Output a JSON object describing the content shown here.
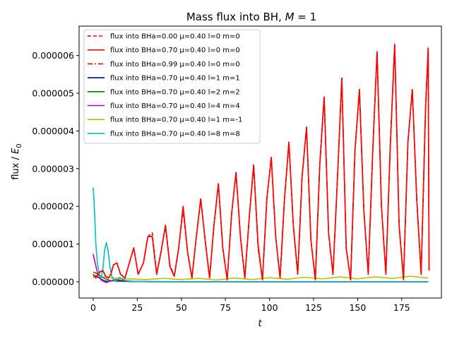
{
  "chart_data": {
    "type": "line",
    "title": "Mass flux into BH, M = 1",
    "title_parts": {
      "prefix": "Mass flux into BH, ",
      "var": "M",
      "suffix": " = 1"
    },
    "xlabel": "t",
    "ylabel_parts": {
      "prefix": "flux / ",
      "var": "E",
      "sub": "0"
    },
    "xlim": [
      -8,
      197.5
    ],
    "ylim": [
      -4.3e-07,
      6.78e-06
    ],
    "x_ticks": [
      0,
      25,
      50,
      75,
      100,
      125,
      150,
      175
    ],
    "y_ticks": [
      0,
      1e-06,
      2e-06,
      3e-06,
      4e-06,
      5e-06,
      6e-06
    ],
    "x_tick_labels": [
      "0",
      "25",
      "50",
      "75",
      "100",
      "125",
      "150",
      "175"
    ],
    "y_tick_labels": [
      "0.000000",
      "0.000001",
      "0.000002",
      "0.000003",
      "0.000004",
      "0.000005",
      "0.000006"
    ],
    "grid": false,
    "legend_position": "top-left",
    "legend_labels": [
      "flux into BHa=0.00 μ=0.40 l=0 m=0",
      "flux into BHa=0.70 μ=0.40 l=0 m=0",
      "flux into BHa=0.99 μ=0.40 l=0 m=0",
      "flux into BHa=0.70 μ=0.40 l=1 m=1",
      "flux into BHa=0.70 μ=0.40 l=2 m=2",
      "flux into BHa=0.70 μ=0.40 l=4 m=4",
      "flux into BHa=0.70 μ=0.40 l=1 m=-1",
      "flux into BHa=0.70 μ=0.40 l=8 m=8"
    ],
    "series": [
      {
        "name": "flux into BHa=0.00 μ=0.40 l=0 m=0",
        "color": "#ff0000",
        "dash": "dashed",
        "x": [
          0,
          1.5,
          3.5,
          5.5,
          7,
          8.5,
          10,
          11.5,
          13.5,
          15.5,
          18,
          20.5,
          23,
          25.5,
          28.5,
          31,
          33.5,
          36,
          38.5,
          41,
          43.5,
          46,
          48.5,
          51,
          53.5,
          56,
          58.5,
          61,
          63.5,
          66,
          68.5,
          71,
          73.5,
          76,
          78.5,
          81,
          83.5,
          86,
          88.5,
          91,
          93.5,
          96,
          98.5,
          101,
          103.5,
          106,
          108.5,
          111,
          113.5,
          116,
          118.5,
          121,
          123.5,
          126,
          128.5,
          131,
          133.5,
          136,
          138.5,
          141,
          143.5,
          146,
          148.5,
          151,
          153.5,
          156,
          158.5,
          161,
          163.5,
          166,
          168.5,
          171,
          173.5,
          176,
          178.5,
          181,
          183.5,
          186,
          188.5,
          190,
          190.5
        ],
        "y": [
          2e-07,
          1e-07,
          2.6e-07,
          3e-07,
          1.5e-07,
          1e-07,
          2e-07,
          4.5e-07,
          5e-07,
          2e-07,
          1e-07,
          5e-07,
          9e-07,
          2e-07,
          5e-07,
          1.2e-06,
          1.3e-06,
          2e-07,
          8e-07,
          1.5e-06,
          4.5e-07,
          1.5e-07,
          9e-07,
          1.9e-06,
          8e-07,
          1e-07,
          1.2e-06,
          2.2e-06,
          1.1e-06,
          1e-07,
          1.5e-06,
          2.6e-06,
          9e-07,
          5e-08,
          1.8e-06,
          2.9e-06,
          1.2e-06,
          1e-07,
          1.7e-06,
          3.1e-06,
          1e-06,
          5e-08,
          2.2e-06,
          3.3e-06,
          1.2e-06,
          1e-07,
          2.2e-06,
          3.7e-06,
          1.5e-06,
          2e-07,
          2.8e-06,
          4.1e-06,
          1.1e-06,
          5e-08,
          3.1e-06,
          4.9e-06,
          1.3e-06,
          2e-07,
          2.7e-06,
          5.4e-06,
          9e-07,
          5e-08,
          3.5e-06,
          5.1e-06,
          1.9e-06,
          2e-07,
          3.4e-06,
          6.1e-06,
          2e-06,
          2e-07,
          3.6e-06,
          6.3e-06,
          1.5e-06,
          5e-08,
          3.7e-06,
          5.1e-06,
          2.2e-06,
          2e-07,
          4.6e-06,
          6.1e-06,
          3e-07
        ]
      },
      {
        "name": "flux into BHa=0.70 μ=0.40 l=0 m=0",
        "color": "#ff0000",
        "dash": "solid",
        "x": [
          0,
          1.5,
          3.5,
          5.5,
          7,
          8.5,
          10,
          11.5,
          13.5,
          15.5,
          18,
          20.5,
          23,
          25.5,
          28.5,
          31,
          33.5,
          36,
          38.5,
          41,
          43.5,
          46,
          48.5,
          51,
          53.5,
          56,
          58.5,
          61,
          63.5,
          66,
          68.5,
          71,
          73.5,
          76,
          78.5,
          81,
          83.5,
          86,
          88.5,
          91,
          93.5,
          96,
          98.5,
          101,
          103.5,
          106,
          108.5,
          111,
          113.5,
          116,
          118.5,
          121,
          123.5,
          126,
          128.5,
          131,
          133.5,
          136,
          138.5,
          141,
          143.5,
          146,
          148.5,
          151,
          153.5,
          156,
          158.5,
          161,
          163.5,
          166,
          168.5,
          171,
          173.5,
          176,
          178.5,
          181,
          183.5,
          186,
          188.5,
          190,
          190.5
        ],
        "y": [
          2e-07,
          1e-07,
          2.5e-07,
          3e-07,
          1.5e-07,
          1e-07,
          2e-07,
          4.5e-07,
          5e-07,
          2e-07,
          1e-07,
          5e-07,
          9e-07,
          2e-07,
          5e-07,
          1.2e-06,
          1.2e-06,
          2e-07,
          8e-07,
          1.5e-06,
          4e-07,
          1.5e-07,
          9e-07,
          2e-06,
          8e-07,
          1e-07,
          1.2e-06,
          2.2e-06,
          1.1e-06,
          1e-07,
          1.5e-06,
          2.6e-06,
          9e-07,
          5e-08,
          1.8e-06,
          2.9e-06,
          1.2e-06,
          1e-07,
          1.7e-06,
          3.1e-06,
          1e-06,
          5e-08,
          2.2e-06,
          3.3e-06,
          1.2e-06,
          1e-07,
          2.2e-06,
          3.7e-06,
          1.5e-06,
          2e-07,
          2.8e-06,
          4.1e-06,
          1.1e-06,
          5e-08,
          3.1e-06,
          4.9e-06,
          1.3e-06,
          2e-07,
          2.7e-06,
          5.4e-06,
          9e-07,
          5e-08,
          3.5e-06,
          5.1e-06,
          1.9e-06,
          2e-07,
          3.4e-06,
          6.1e-06,
          2e-06,
          2e-07,
          3.6e-06,
          6.3e-06,
          1.5e-06,
          5e-08,
          3.7e-06,
          5.1e-06,
          2.2e-06,
          2e-07,
          4.6e-06,
          6.2e-06,
          3e-07
        ]
      },
      {
        "name": "flux into BHa=0.99 μ=0.40 l=0 m=0",
        "color": "#ff0000",
        "dash": "dashdot",
        "x": [
          0,
          1.5,
          3.5,
          5.5,
          7,
          8.5,
          10,
          11.5,
          13.5,
          15.5,
          18,
          20.5,
          23,
          25.5,
          28.5,
          31,
          33.5,
          36,
          38.5,
          41,
          43.5,
          46,
          48.5,
          51,
          53.5,
          56,
          58.5,
          61,
          63.5,
          66,
          68.5,
          71,
          73.5,
          76,
          78.5,
          81,
          83.5,
          86,
          88.5,
          91,
          93.5,
          96,
          98.5,
          101,
          103.5,
          106,
          108.5,
          111,
          113.5,
          116,
          118.5,
          121,
          123.5,
          126,
          128.5,
          131,
          133.5,
          136,
          138.5,
          141,
          143.5,
          146,
          148.5,
          151,
          153.5,
          156,
          158.5,
          161,
          163.5,
          166,
          168.5,
          171,
          173.5,
          176,
          178.5,
          181,
          183.5,
          186,
          188.5,
          190,
          190.5
        ],
        "y": [
          2e-07,
          1e-07,
          2.5e-07,
          3e-07,
          1.5e-07,
          1e-07,
          2e-07,
          4.5e-07,
          5e-07,
          2e-07,
          1e-07,
          5e-07,
          9e-07,
          2e-07,
          5e-07,
          1.2e-06,
          1.2e-06,
          2e-07,
          8e-07,
          1.5e-06,
          4e-07,
          1.5e-07,
          9e-07,
          2e-06,
          8e-07,
          1e-07,
          1.2e-06,
          2.2e-06,
          1.1e-06,
          1e-07,
          1.5e-06,
          2.6e-06,
          9e-07,
          5e-08,
          1.8e-06,
          2.9e-06,
          1.2e-06,
          1e-07,
          1.7e-06,
          3.1e-06,
          9e-07,
          5e-08,
          2.2e-06,
          3.3e-06,
          1.2e-06,
          1e-07,
          2.2e-06,
          3.7e-06,
          1.5e-06,
          2e-07,
          2.8e-06,
          4.1e-06,
          1.1e-06,
          5e-08,
          3.1e-06,
          4.9e-06,
          1.3e-06,
          2e-07,
          2.7e-06,
          5.4e-06,
          9e-07,
          5e-08,
          3.5e-06,
          5.1e-06,
          1.9e-06,
          2e-07,
          3.4e-06,
          6.1e-06,
          2e-06,
          2e-07,
          3.6e-06,
          6.3e-06,
          1.5e-06,
          5e-08,
          3.7e-06,
          5.1e-06,
          2.2e-06,
          2e-07,
          4.6e-06,
          6.2e-06,
          3e-07
        ]
      },
      {
        "name": "flux into BHa=0.70 μ=0.40 l=1 m=1",
        "color": "#0000cc",
        "dash": "solid",
        "x": [
          0,
          1.5,
          3,
          4.5,
          6,
          8,
          10,
          12,
          15,
          20,
          30,
          50,
          80,
          120,
          160,
          180,
          190
        ],
        "y": [
          1.2e-07,
          1.6e-07,
          1.2e-07,
          7e-08,
          3e-08,
          1e-08,
          2e-08,
          5e-08,
          3e-08,
          1e-08,
          5e-09,
          5e-09,
          5e-09,
          5e-09,
          5e-09,
          5e-09,
          5e-09
        ]
      },
      {
        "name": "flux into BHa=0.70 μ=0.40 l=2 m=2",
        "color": "#008000",
        "dash": "solid",
        "x": [
          0,
          2,
          4,
          6,
          8,
          10,
          13,
          16,
          20,
          30,
          50,
          80,
          120,
          160,
          190
        ],
        "y": [
          2.6e-07,
          2.2e-07,
          1.6e-07,
          1e-07,
          6e-08,
          3e-08,
          2e-08,
          1.2e-08,
          1e-08,
          8e-09,
          5e-09,
          5e-09,
          5e-09,
          5e-09,
          5e-09
        ]
      },
      {
        "name": "flux into BHa=0.70 μ=0.40 l=4 m=4",
        "color": "#bf00bf",
        "dash": "solid",
        "x": [
          0,
          1,
          2,
          3,
          4.5,
          6,
          7.5,
          9,
          11,
          13,
          15,
          18,
          22,
          30,
          50,
          80,
          120,
          160,
          190
        ],
        "y": [
          7.4e-07,
          5.2e-07,
          3.2e-07,
          1.6e-07,
          5e-08,
          1e-08,
          -2e-08,
          1e-08,
          4e-08,
          6e-08,
          5e-08,
          3e-08,
          1e-08,
          5e-09,
          2e-09,
          2e-09,
          2e-09,
          2e-09,
          2e-09
        ]
      },
      {
        "name": "flux into BHa=0.70 μ=0.40 l=1 m=-1",
        "color": "#bfbf00",
        "dash": "solid",
        "x": [
          0,
          3,
          6,
          9,
          12,
          15,
          20,
          25,
          30,
          40,
          50,
          60,
          70,
          80,
          90,
          100,
          110,
          120,
          130,
          140,
          150,
          160,
          170,
          180,
          190
        ],
        "y": [
          1.2e-07,
          1.5e-07,
          1.3e-07,
          1.1e-07,
          1e-07,
          9e-08,
          8e-08,
          7e-08,
          6e-08,
          9e-08,
          6e-08,
          9e-08,
          5e-08,
          1e-07,
          6e-08,
          1.1e-07,
          7e-08,
          1.2e-07,
          8e-08,
          1.3e-07,
          8e-08,
          1.3e-07,
          9e-08,
          1.5e-07,
          1e-07
        ]
      },
      {
        "name": "flux into BHa=0.70 μ=0.40 l=8 m=8",
        "color": "#00bfbf",
        "dash": "solid",
        "x": [
          0,
          0.5,
          1,
          1.5,
          2.5,
          3.5,
          4.5,
          5.5,
          6.5,
          7.5,
          8.5,
          9.5,
          10.5,
          12,
          13.5,
          15,
          17,
          20,
          25,
          30,
          50,
          80,
          120,
          160,
          190
        ],
        "y": [
          2.5e-06,
          2.1e-06,
          1.6e-06,
          1e-06,
          4.5e-07,
          2e-07,
          1e-07,
          3.5e-07,
          8.5e-07,
          1.04e-06,
          8e-07,
          4e-07,
          1.5e-07,
          2e-08,
          5e-08,
          1.2e-07,
          6e-08,
          2e-08,
          1e-08,
          5e-09,
          2e-09,
          2e-09,
          2e-09,
          2e-09,
          2e-09
        ]
      }
    ]
  }
}
